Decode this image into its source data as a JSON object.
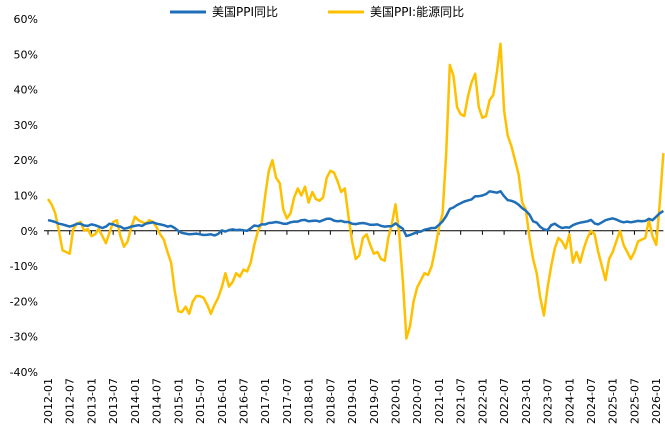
{
  "chart_data": {
    "type": "line",
    "categories": [
      "2012-01",
      null,
      null,
      null,
      null,
      null,
      "2012-07",
      null,
      null,
      null,
      null,
      null,
      "2013-01",
      null,
      null,
      null,
      null,
      null,
      "2013-07",
      null,
      null,
      null,
      null,
      null,
      "2014-01",
      null,
      null,
      null,
      null,
      null,
      "2014-07",
      null,
      null,
      null,
      null,
      null,
      "2015-01",
      null,
      null,
      null,
      null,
      null,
      "2015-07",
      null,
      null,
      null,
      null,
      null,
      "2016-01",
      null,
      null,
      null,
      null,
      null,
      "2016-07",
      null,
      null,
      null,
      null,
      null,
      "2017-01",
      null,
      null,
      null,
      null,
      null,
      "2017-07",
      null,
      null,
      null,
      null,
      null,
      "2018-01",
      null,
      null,
      null,
      null,
      null,
      "2018-07",
      null,
      null,
      null,
      null,
      null,
      "2019-01",
      null,
      null,
      null,
      null,
      null,
      "2019-07",
      null,
      null,
      null,
      null,
      null,
      "2020-01",
      null,
      null,
      null,
      null,
      null,
      "2020-07",
      null,
      null,
      null,
      null,
      null,
      "2021-01",
      null,
      null,
      null,
      null,
      null,
      "2021-07",
      null,
      null,
      null,
      null,
      null,
      "2022-01",
      null,
      null,
      null,
      null,
      null,
      "2022-07",
      null,
      null,
      null,
      null,
      null,
      "2023-01",
      null,
      null,
      null,
      null,
      null,
      "2023-07",
      null,
      null,
      null,
      null,
      null,
      "2024-01",
      null,
      null,
      null,
      null,
      null,
      "2024-07",
      null,
      null,
      null,
      null,
      null,
      "2025-01",
      null,
      null,
      null,
      null,
      null,
      "2025-07",
      null,
      null,
      null,
      null,
      null,
      "2026-01",
      null,
      null
    ],
    "series": [
      {
        "name": "美国PPI同比",
        "color": "#1f6fb8",
        "values": [
          3,
          2.8,
          2.5,
          2,
          1.8,
          1.5,
          1.2,
          1.5,
          2,
          2,
          1.5,
          1.4,
          1.8,
          1.6,
          1.2,
          0.8,
          1.2,
          2,
          1.8,
          1.4,
          1.2,
          0.6,
          0.8,
          1.2,
          1.4,
          1.6,
          1.4,
          2,
          2.2,
          2.4,
          2,
          1.8,
          1.6,
          1.2,
          1.4,
          0.8,
          0,
          -0.6,
          -0.8,
          -1,
          -0.9,
          -0.8,
          -1,
          -1.2,
          -1.1,
          -1,
          -1.3,
          -0.9,
          0.1,
          -0.2,
          0.2,
          0.4,
          0.2,
          0.3,
          0.1,
          0,
          0.7,
          1.5,
          1.3,
          1.8,
          1.8,
          2.2,
          2.3,
          2.5,
          2.3,
          2,
          2,
          2.4,
          2.6,
          2.6,
          3,
          3.1,
          2.7,
          2.8,
          2.9,
          2.6,
          3,
          3.4,
          3.4,
          2.9,
          2.7,
          2.8,
          2.5,
          2.5,
          2,
          1.9,
          2.1,
          2.2,
          2,
          1.7,
          1.7,
          1.8,
          1.4,
          1.2,
          1.3,
          1.3,
          2.1,
          1.3,
          0.6,
          -1.5,
          -1.2,
          -0.8,
          -0.4,
          -0.2,
          0.3,
          0.5,
          0.8,
          0.8,
          1.7,
          2.7,
          4.2,
          6.2,
          6.6,
          7.3,
          7.8,
          8.3,
          8.6,
          8.9,
          9.8,
          9.8,
          10,
          10.4,
          11.2,
          11,
          10.8,
          11.2,
          9.8,
          8.7,
          8.5,
          8.1,
          7.4,
          6.4,
          5.7,
          4.6,
          2.7,
          2.3,
          1.1,
          0.4,
          0.2,
          1.6,
          2,
          1.3,
          0.8,
          1,
          0.9,
          1.6,
          2,
          2.3,
          2.5,
          2.7,
          3.1,
          2.1,
          1.8,
          2.4,
          3,
          3.3,
          3.5,
          3.2,
          2.7,
          2.4,
          2.6,
          2.4,
          2.6,
          2.8,
          2.7,
          2.8,
          3.4,
          3,
          4,
          5,
          5.6
        ]
      },
      {
        "name": "美国PPI:能源同比",
        "color": "#ffc000",
        "values": [
          9,
          7.5,
          5,
          0,
          -5.5,
          -6,
          -6.5,
          0.5,
          2,
          2.5,
          0,
          0.5,
          -1.5,
          -1,
          0.5,
          -1.5,
          -3.5,
          -0.5,
          2.5,
          3,
          -1.5,
          -4.5,
          -3,
          1,
          4,
          3,
          2.5,
          2,
          3,
          2.5,
          1,
          -1,
          -2.5,
          -6,
          -9,
          -17,
          -22.8,
          -23,
          -21.5,
          -23.5,
          -20,
          -18.5,
          -18.5,
          -19,
          -21,
          -23.5,
          -21,
          -19,
          -16,
          -12,
          -15.8,
          -14.5,
          -12,
          -13,
          -11,
          -11.5,
          -9,
          -4,
          0,
          2,
          10,
          17,
          20,
          15,
          13.5,
          6,
          3.5,
          5,
          9.5,
          12,
          10,
          12.5,
          8,
          11,
          9,
          8.5,
          9.5,
          15,
          17,
          16.5,
          14,
          11,
          12,
          4,
          -3,
          -8,
          -7,
          -2,
          -1,
          -4,
          -6.5,
          -6,
          -8,
          -8.5,
          -2,
          2,
          7.5,
          -0.5,
          -14,
          -30.5,
          -27,
          -20,
          -16,
          -14,
          -12,
          -12.5,
          -10,
          -5,
          1,
          5,
          22,
          47,
          44,
          35,
          33,
          32.5,
          38,
          42,
          44.5,
          35,
          32,
          32.5,
          37,
          38.5,
          45,
          53,
          34,
          27,
          24,
          20,
          16,
          8,
          6,
          -2,
          -8,
          -12,
          -19,
          -24,
          -16,
          -10,
          -5,
          -2,
          -3,
          -5,
          -1,
          -9,
          -6,
          -9,
          -5,
          -2,
          0,
          -1,
          -6,
          -10,
          -14,
          -8,
          -6,
          -3,
          0,
          -4,
          -6,
          -8,
          -6,
          -3,
          -2.5,
          -2,
          3,
          -1.5,
          -4,
          8,
          22
        ]
      }
    ],
    "ylim": [
      -40,
      60
    ],
    "yticks": [
      {
        "value": -40,
        "label": "-40%"
      },
      {
        "value": -30,
        "label": "-30%"
      },
      {
        "value": -20,
        "label": "-20%"
      },
      {
        "value": -10,
        "label": "-10%"
      },
      {
        "value": 0,
        "label": "0%"
      },
      {
        "value": 10,
        "label": "10%"
      },
      {
        "value": 20,
        "label": "20%"
      },
      {
        "value": 30,
        "label": "30%"
      },
      {
        "value": 40,
        "label": "40%"
      },
      {
        "value": 50,
        "label": "50%"
      },
      {
        "value": 60,
        "label": "60%"
      }
    ],
    "legend": "top"
  }
}
